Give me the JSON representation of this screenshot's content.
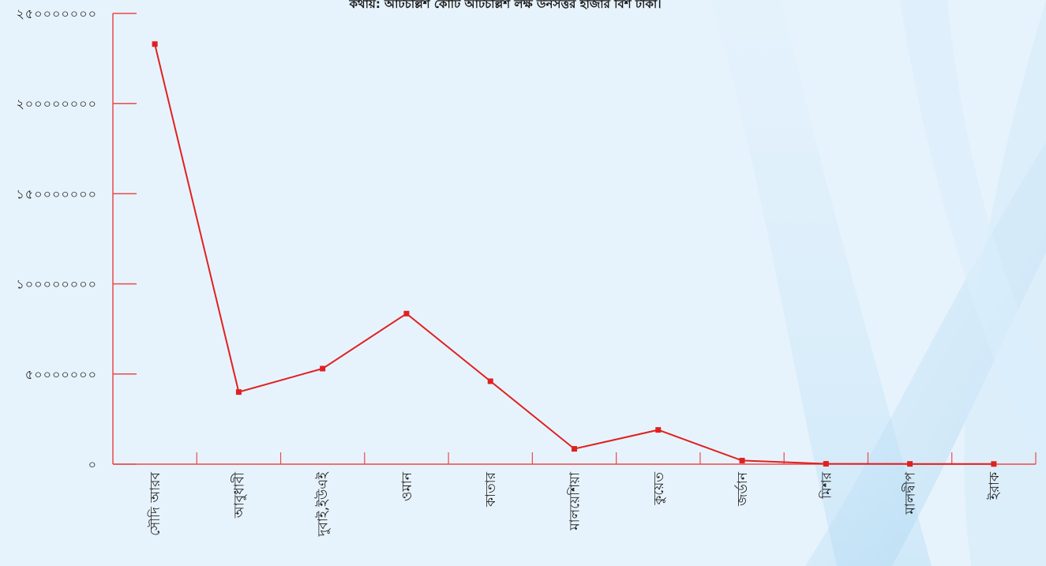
{
  "title": "কথায়: আটচল্লিশ কোটি আটচল্লিশ লক্ষ উনসত্তর হাজার বিশ টাকা।",
  "colors": {
    "background": "#e6f3fc",
    "axis": "#e84a4a",
    "line": "#e02020",
    "marker": "#e02020"
  },
  "chart_data": {
    "type": "line",
    "title": "কথায়: আটচল্লিশ কোটি আটচল্লিশ লক্ষ উনসত্তর হাজার বিশ টাকা।",
    "xlabel": "",
    "ylabel": "",
    "ylim": [
      0,
      250000000
    ],
    "yticks": [
      0,
      50000000,
      100000000,
      150000000,
      200000000,
      250000000
    ],
    "ytick_labels": [
      "০",
      "৫০০০০০০০",
      "১০০০০০০০০",
      "১৫০০০০০০০",
      "২০০০০০০০০",
      "২৫০০০০০০০"
    ],
    "categories": [
      "সৌদি আরব",
      "আবুধাবী",
      "দুবাই,ইউএই",
      "ওমান",
      "কাতার",
      "মালয়েশিয়া",
      "কুয়েত",
      "জর্ডান",
      "মিশর",
      "মালদ্বীপ",
      "ইরাক"
    ],
    "values": [
      233000000,
      40000000,
      53000000,
      83500000,
      46000000,
      8500000,
      19000000,
      2000000,
      200000,
      150000,
      100000
    ],
    "grid": false,
    "legend": "none"
  }
}
